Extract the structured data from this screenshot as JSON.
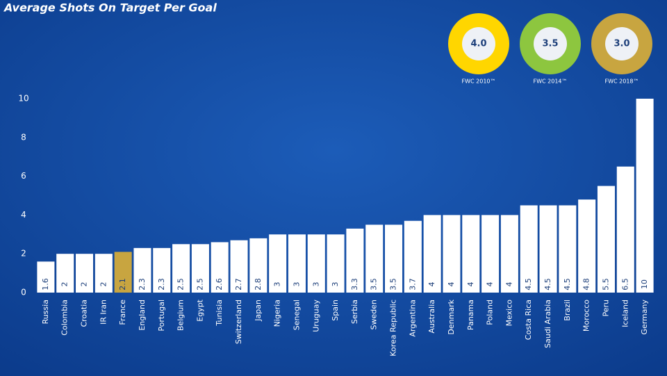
{
  "chart_data": {
    "type": "bar",
    "title": "Average Shots On Target Per Goal",
    "categories": [
      "Russia",
      "Colombia",
      "Croatia",
      "IR Iran",
      "France",
      "England",
      "Portugal",
      "Belgium",
      "Egypt",
      "Tunisia",
      "Switzerland",
      "Japan",
      "Nigeria",
      "Senegal",
      "Uruguay",
      "Spain",
      "Serbia",
      "Sweden",
      "Korea Republic",
      "Argentina",
      "Australia",
      "Denmark",
      "Panama",
      "Poland",
      "Mexico",
      "Costa Rica",
      "Saudi Arabia",
      "Brazil",
      "Morocco",
      "Peru",
      "Iceland",
      "Germany"
    ],
    "values": [
      1.6,
      2,
      2,
      2,
      2.1,
      2.3,
      2.3,
      2.5,
      2.5,
      2.6,
      2.7,
      2.8,
      3,
      3,
      3,
      3,
      3.3,
      3.5,
      3.5,
      3.7,
      4,
      4,
      4,
      4,
      4,
      4.5,
      4.5,
      4.5,
      4.8,
      5.5,
      6.5,
      10
    ],
    "color": "#ffffff",
    "highlight": {
      "category": "France",
      "color": "#c8a540"
    },
    "ylim": [
      0,
      10
    ],
    "yticks": [
      0,
      2,
      4,
      6,
      8,
      10
    ],
    "grid": false,
    "annotations": [
      {
        "value": "4.0",
        "label": "FWC 2010™",
        "color": "#ffd600"
      },
      {
        "value": "3.5",
        "label": "FWC 2014™",
        "color": "#8dc63f"
      },
      {
        "value": "3.0",
        "label": "FWC 2018™",
        "color": "#c8a540"
      }
    ]
  }
}
